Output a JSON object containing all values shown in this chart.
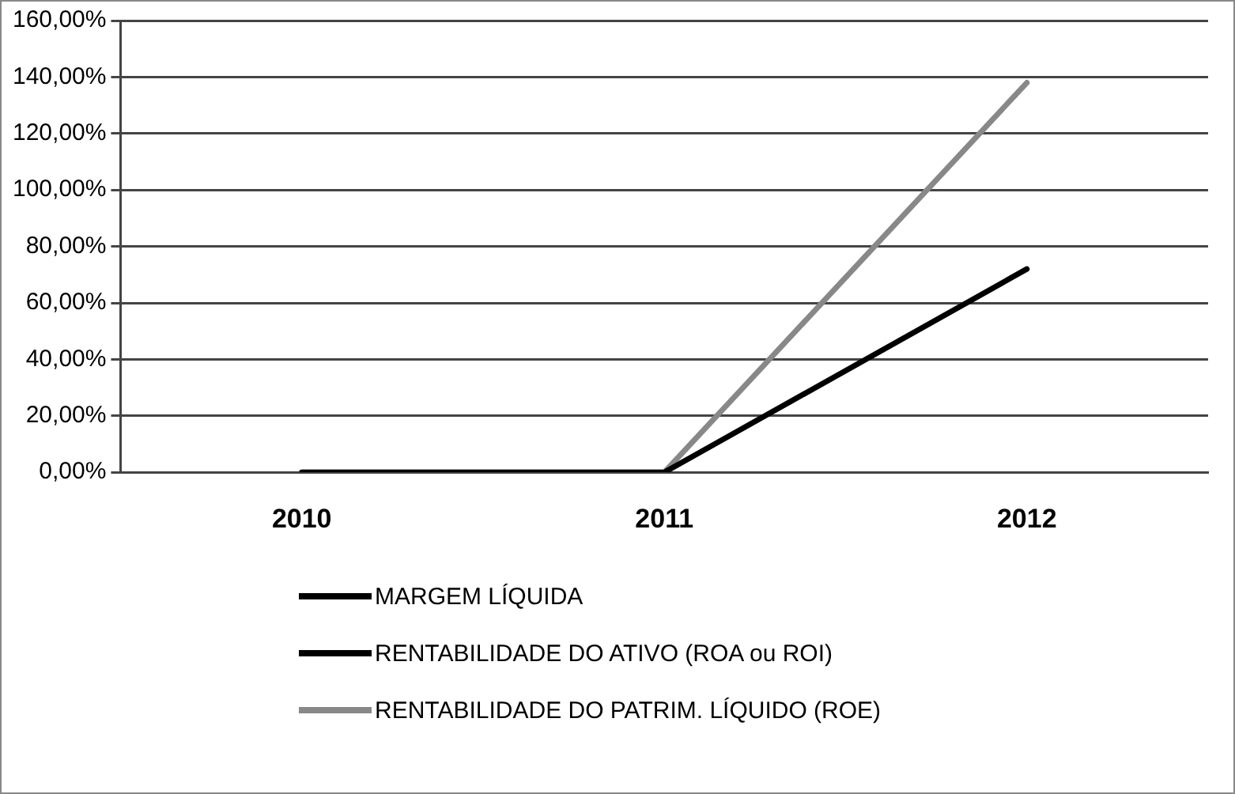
{
  "chart_data": {
    "type": "line",
    "categories": [
      "2010",
      "2011",
      "2012"
    ],
    "series": [
      {
        "name": "MARGEM LÍQUIDA",
        "color": "#000000",
        "values": [
          null,
          null,
          null
        ]
      },
      {
        "name": "RENTABILIDADE DO ATIVO (ROA ou ROI)",
        "color": "#000000",
        "values": [
          0,
          0,
          72
        ]
      },
      {
        "name": "RENTABILIDADE DO PATRIM. LÍQUIDO (ROE)",
        "color": "#888888",
        "values": [
          0,
          0,
          138
        ]
      }
    ],
    "ylim": [
      0,
      160
    ],
    "yticks": [
      {
        "value": 0,
        "label": "0,00%"
      },
      {
        "value": 20,
        "label": "20,00%"
      },
      {
        "value": 40,
        "label": "40,00%"
      },
      {
        "value": 60,
        "label": "60,00%"
      },
      {
        "value": 80,
        "label": "80,00%"
      },
      {
        "value": 100,
        "label": "100,00%"
      },
      {
        "value": 120,
        "label": "120,00%"
      },
      {
        "value": 140,
        "label": "140,00%"
      },
      {
        "value": 160,
        "label": "160,00%"
      }
    ],
    "grid": "y",
    "legend": "bottom",
    "marker": "none",
    "line_style": "solid"
  }
}
